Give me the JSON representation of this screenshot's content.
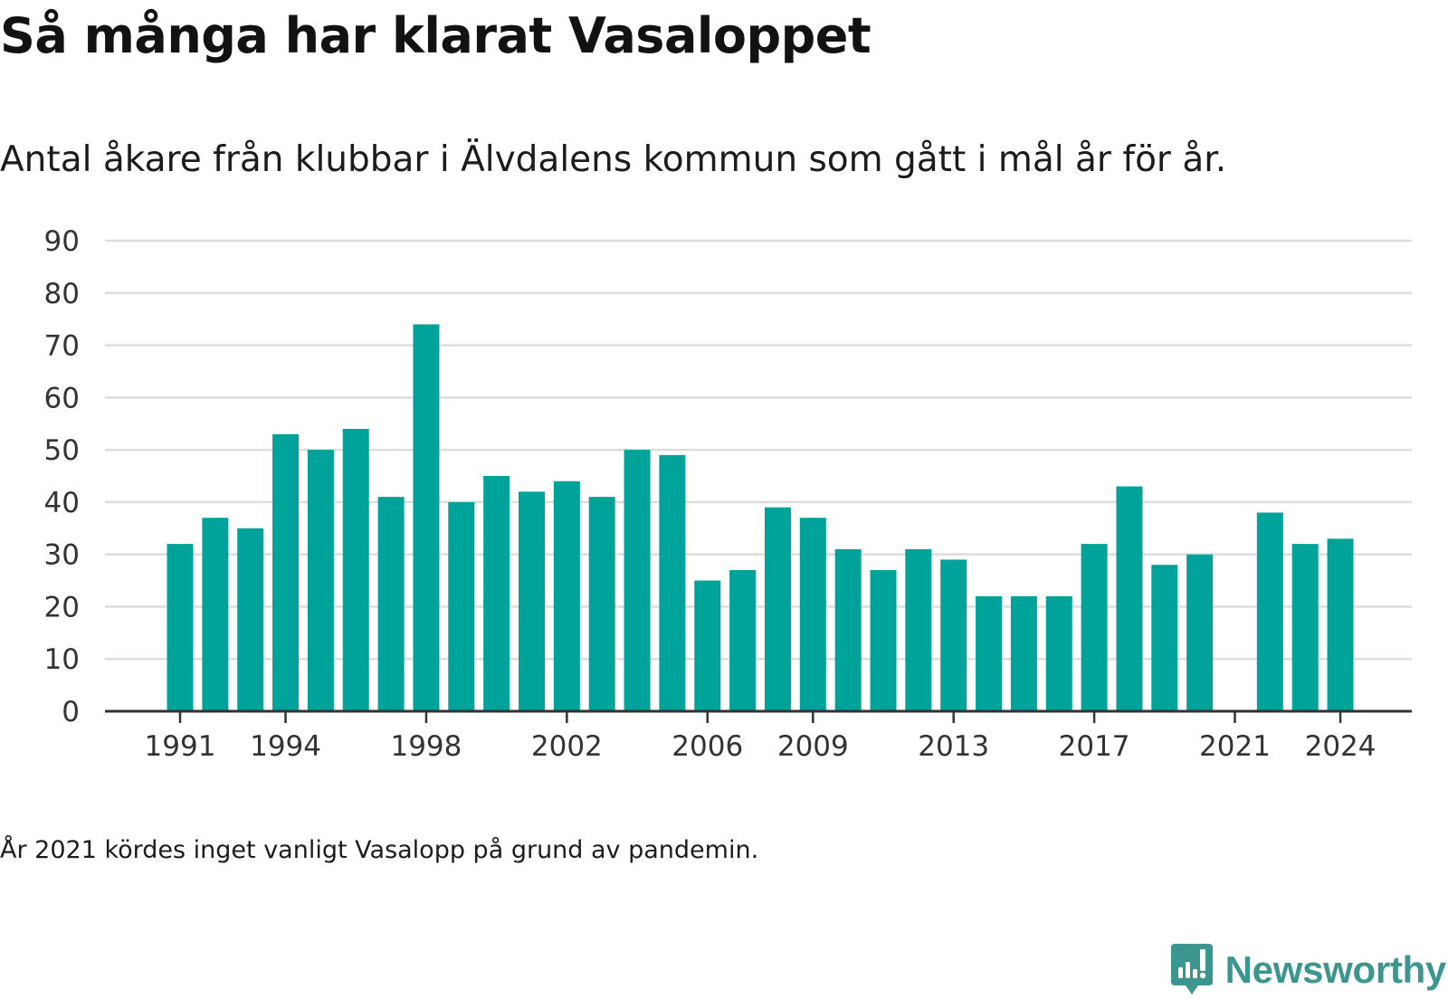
{
  "title": "Så många har klarat Vasaloppet",
  "subtitle": "Antal åkare från klubbar i Älvdalens kommun som gått i mål år för år.",
  "note": "År 2021 kördes inget vanligt Vasalopp på grund av pandemin.",
  "brand": {
    "name": "Newsworthy",
    "color": "#3c9690",
    "icon": "newsworthy-logo-icon"
  },
  "colors": {
    "bar": "#00a39a",
    "grid": "#dddddd",
    "axis": "#333333"
  },
  "chart_data": {
    "type": "bar",
    "title": "Så många har klarat Vasaloppet",
    "subtitle": "Antal åkare från klubbar i Älvdalens kommun som gått i mål år för år.",
    "xlabel": "",
    "ylabel": "",
    "ylim": [
      0,
      90
    ],
    "yticks": [
      0,
      10,
      20,
      30,
      40,
      50,
      60,
      70,
      80,
      90
    ],
    "xticks": [
      1991,
      1994,
      1998,
      2002,
      2006,
      2009,
      2013,
      2017,
      2021,
      2024
    ],
    "grid": true,
    "legend": "none",
    "categories": [
      1991,
      1992,
      1993,
      1994,
      1995,
      1996,
      1997,
      1998,
      1999,
      2000,
      2001,
      2002,
      2003,
      2004,
      2005,
      2006,
      2007,
      2008,
      2009,
      2010,
      2011,
      2012,
      2013,
      2014,
      2015,
      2016,
      2017,
      2018,
      2019,
      2020,
      2021,
      2022,
      2023,
      2024
    ],
    "values": [
      32,
      37,
      35,
      53,
      50,
      54,
      41,
      74,
      40,
      45,
      42,
      44,
      41,
      50,
      49,
      25,
      27,
      39,
      37,
      31,
      27,
      31,
      29,
      22,
      22,
      22,
      32,
      43,
      28,
      30,
      null,
      38,
      32,
      33
    ]
  }
}
